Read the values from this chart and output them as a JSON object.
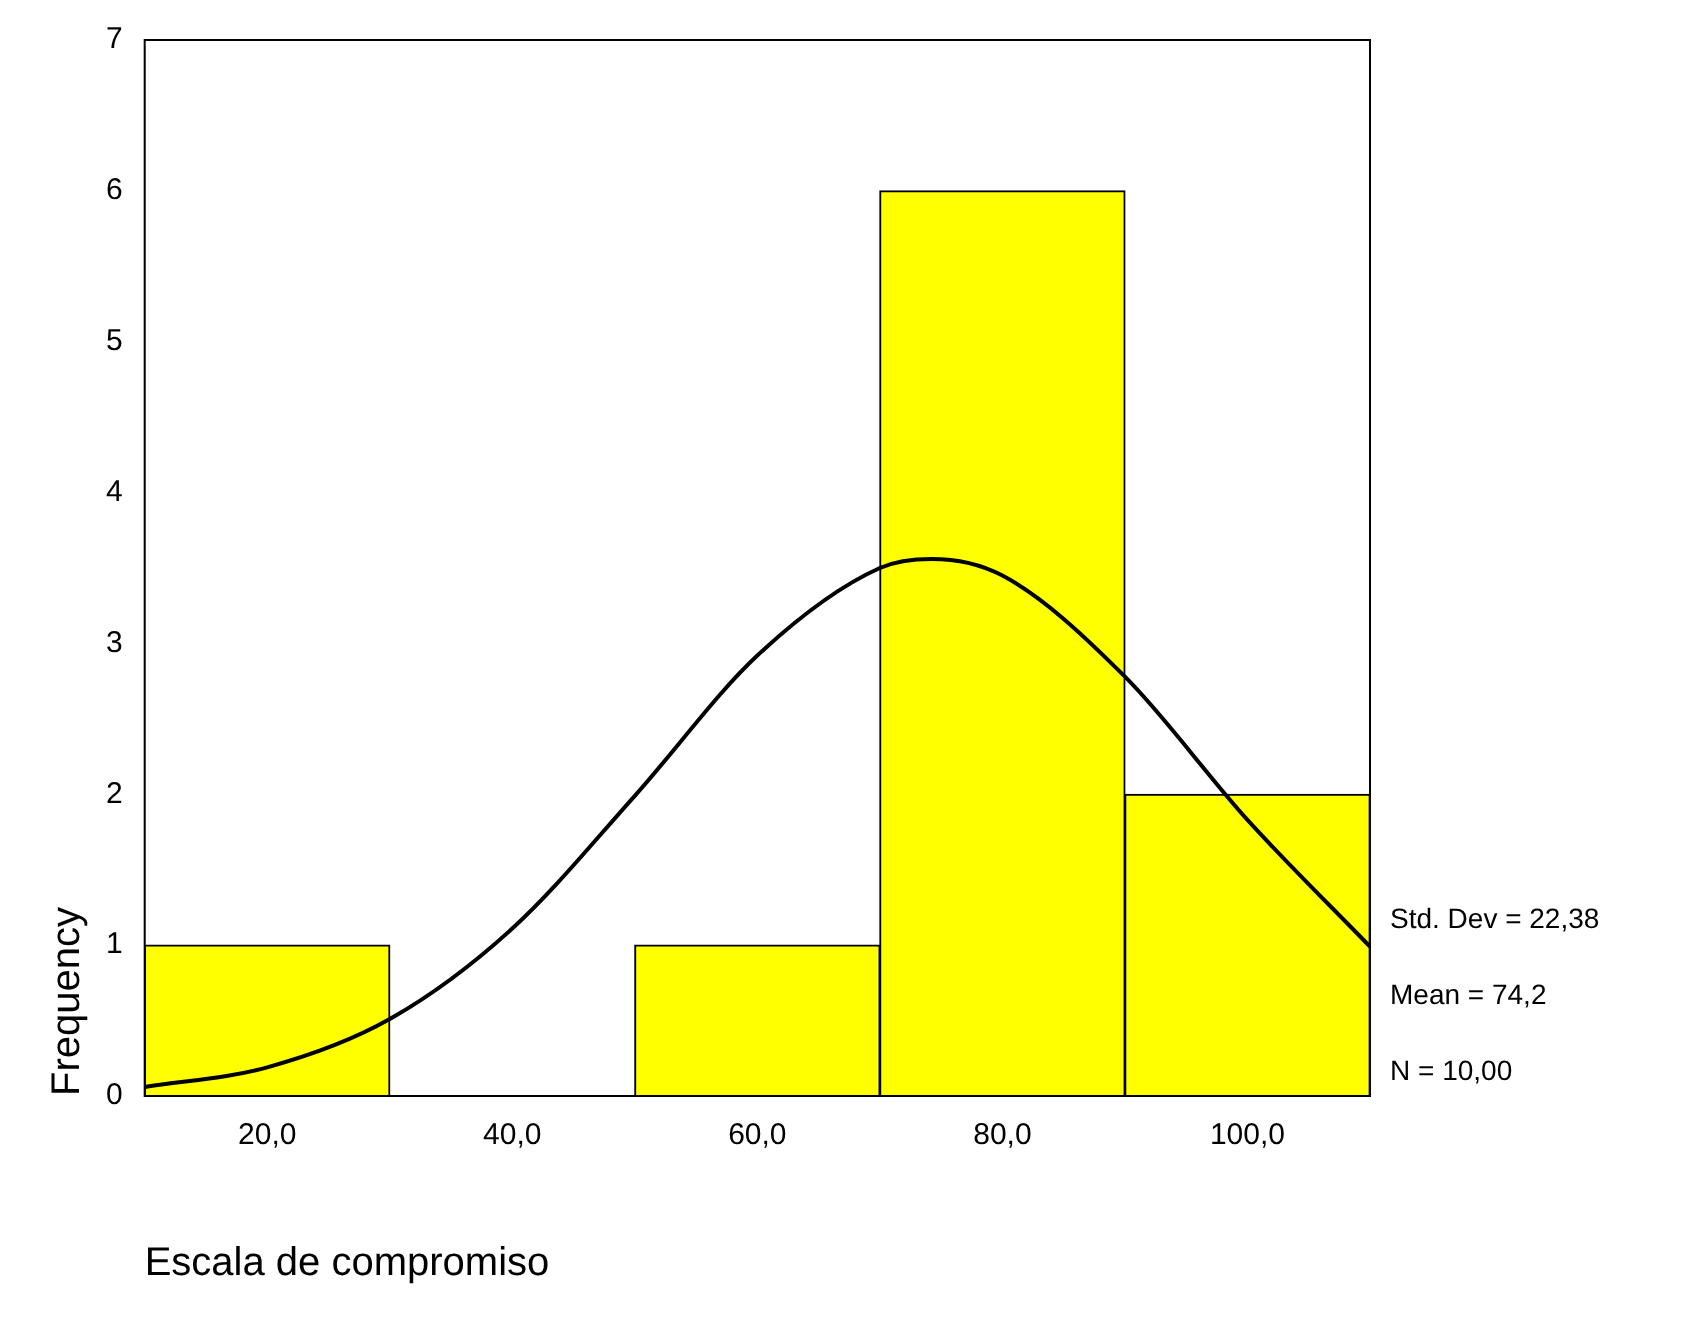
{
  "chart_data": {
    "type": "histogram",
    "xlabel": "Escala de compromiso",
    "ylabel": "Frequency",
    "bins": [
      10,
      30,
      50,
      70,
      90,
      110
    ],
    "values": [
      1,
      0,
      1,
      6,
      2
    ],
    "color": "#ffff00",
    "series": [
      {
        "type": "line",
        "color": "#000000",
        "marker": "none",
        "x": [
          10,
          20,
          30,
          40,
          50,
          60,
          70,
          74.2,
          80,
          90,
          100,
          110
        ],
        "values": [
          0.06,
          0.19,
          0.51,
          1.11,
          1.99,
          2.92,
          3.5,
          3.56,
          3.45,
          2.78,
          1.83,
          0.99
        ]
      }
    ],
    "xlim": [
      10,
      110
    ],
    "xticks": [
      {
        "value": 20,
        "label": "20,0"
      },
      {
        "value": 40,
        "label": "40,0"
      },
      {
        "value": 60,
        "label": "60,0"
      },
      {
        "value": 80,
        "label": "80,0"
      },
      {
        "value": 100,
        "label": "100,0"
      }
    ],
    "ylim": [
      0,
      7
    ],
    "yticks": [
      0,
      1,
      2,
      3,
      4,
      5,
      6,
      7
    ],
    "grid": false,
    "legend": false,
    "annotations": [
      "Std. Dev = 22,38",
      "Mean = 74,2",
      "N = 10,00"
    ]
  }
}
